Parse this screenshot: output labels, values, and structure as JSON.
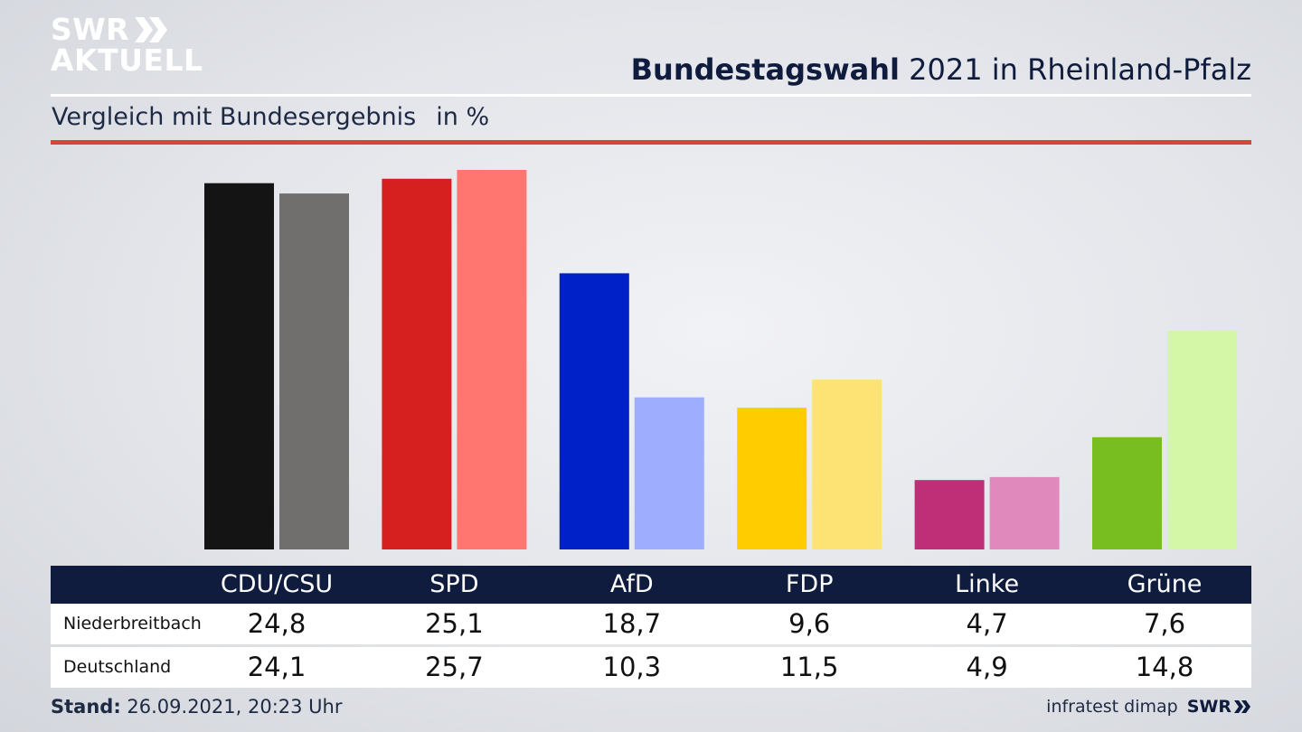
{
  "logo": {
    "line1": "SWR",
    "line2": "AKTUELL"
  },
  "header": {
    "title_bold": "Bundestagswahl",
    "title_rest": " 2021 in Rheinland-Pfalz"
  },
  "subheader": {
    "text": "Vergleich mit Bundesergebnis",
    "unit": "in %"
  },
  "colors": {
    "navy": "#0f1c3d",
    "red_rule": "#d1473c"
  },
  "chart_data": {
    "type": "bar",
    "title": "Vergleich mit Bundesergebnis",
    "ylabel": "in %",
    "ylim": [
      0,
      26
    ],
    "categories": [
      "CDU/CSU",
      "SPD",
      "AfD",
      "FDP",
      "Linke",
      "Grüne"
    ],
    "series": [
      {
        "name": "Niederbreitbach",
        "values": [
          24.8,
          25.1,
          18.7,
          9.6,
          4.7,
          7.6
        ],
        "labels": [
          "24,8",
          "25,1",
          "18,7",
          "9,6",
          "4,7",
          "7,6"
        ],
        "colors": [
          "#141414",
          "#d61f1f",
          "#0020c8",
          "#ffcc00",
          "#be2f78",
          "#78be21"
        ]
      },
      {
        "name": "Deutschland",
        "values": [
          24.1,
          25.7,
          10.3,
          11.5,
          4.9,
          14.8
        ],
        "labels": [
          "24,1",
          "25,7",
          "10,3",
          "11,5",
          "4,9",
          "14,8"
        ],
        "colors": [
          "#706f6d",
          "#ff7570",
          "#9fadff",
          "#fde374",
          "#e089bd",
          "#d3f7a6"
        ]
      }
    ]
  },
  "footer": {
    "stand_label": "Stand:",
    "stand_value": " 26.09.2021, 20:23 Uhr",
    "source": "infratest dimap",
    "brand": "SWR"
  }
}
